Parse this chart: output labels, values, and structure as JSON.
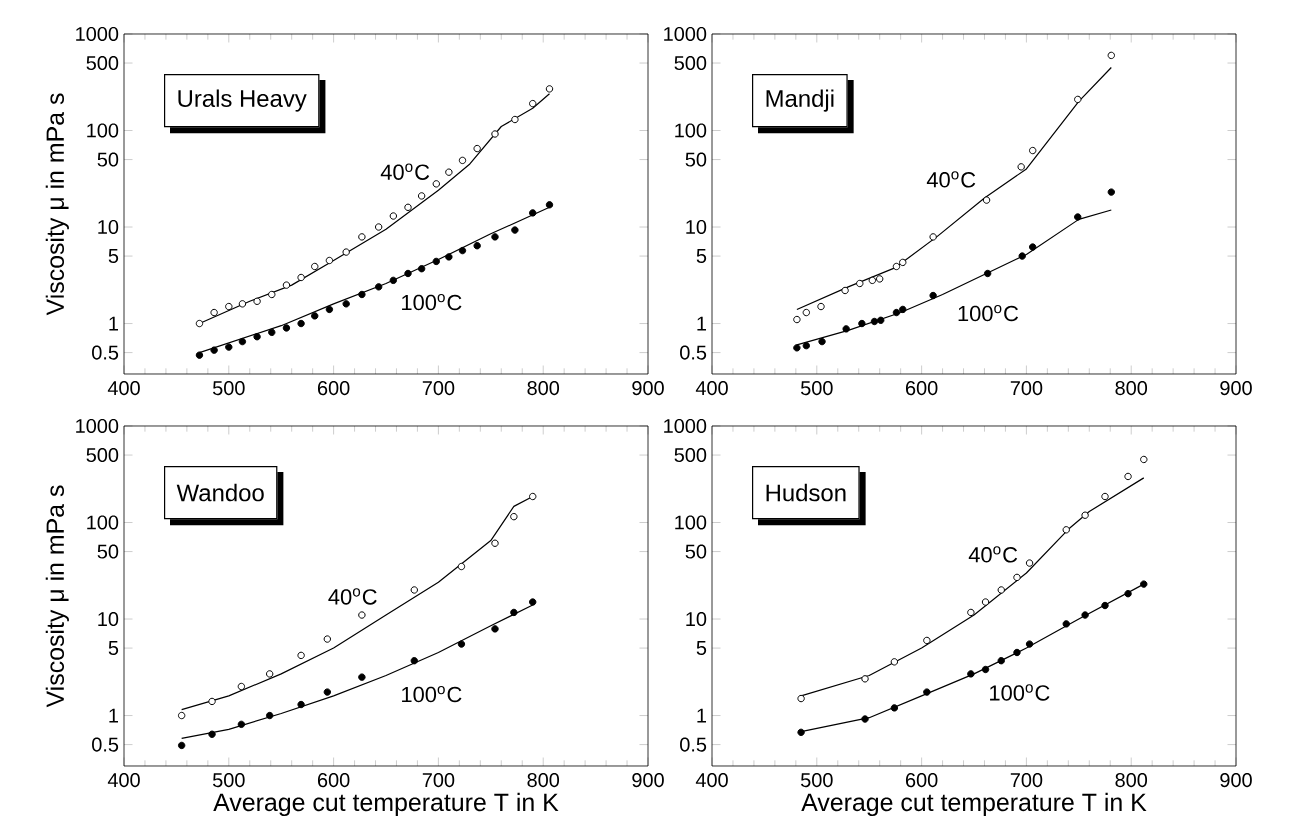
{
  "chart_data": [
    {
      "type": "scatter",
      "title": "Urals Heavy",
      "ylabel": "Viscosity μ in mPa s",
      "log": "y",
      "xlim": [
        400,
        900
      ],
      "ylim": [
        0.3,
        1000
      ],
      "xticks": [
        400,
        500,
        600,
        700,
        800,
        900
      ],
      "yticks": [
        0.5,
        1,
        5,
        10,
        50,
        100,
        500,
        1000
      ],
      "series": [
        {
          "marker": "circle",
          "color": "#000000",
          "x": [
            472,
            486,
            500,
            513,
            527,
            541,
            555,
            569,
            582,
            596,
            612,
            627,
            643,
            657,
            671,
            684,
            698,
            710,
            723,
            737,
            754,
            773,
            790,
            806
          ],
          "values": [
            1.0,
            1.3,
            1.5,
            1.6,
            1.7,
            2.0,
            2.5,
            3.0,
            3.9,
            4.5,
            5.5,
            7.9,
            10,
            13,
            16,
            21,
            28,
            37,
            49,
            65,
            92,
            130,
            190,
            270
          ]
        },
        {
          "type": "line",
          "name": "40$^{o}$C",
          "marker": "none",
          "line_style": "solid",
          "color": "#000000",
          "x": [
            472,
            520,
            560,
            600,
            650,
            700,
            730,
            760,
            790,
            806
          ],
          "values": [
            1.0,
            1.7,
            2.5,
            4.5,
            9.5,
            24,
            45,
            110,
            170,
            240
          ]
        },
        {
          "marker": "circle",
          "color": "#000000",
          "x": [
            472,
            486,
            500,
            513,
            527,
            541,
            555,
            569,
            582,
            596,
            612,
            627,
            643,
            657,
            671,
            684,
            698,
            710,
            723,
            737,
            754,
            773,
            790,
            806
          ],
          "values": [
            0.47,
            0.53,
            0.57,
            0.65,
            0.73,
            0.81,
            0.9,
            1.0,
            1.2,
            1.4,
            1.6,
            2.0,
            2.4,
            2.8,
            3.3,
            3.7,
            4.4,
            4.9,
            5.7,
            6.4,
            7.9,
            9.3,
            14,
            17
          ]
        },
        {
          "type": "line",
          "name": "100$^{o}$C",
          "marker": "none",
          "line_style": "solid",
          "color": "#000000",
          "x": [
            472,
            550,
            600,
            650,
            700,
            750,
            806
          ],
          "values": [
            0.5,
            0.95,
            1.6,
            2.6,
            4.6,
            8.5,
            16
          ]
        }
      ]
    },
    {
      "type": "scatter",
      "title": "Mandji",
      "log": "y",
      "xlim": [
        400,
        900
      ],
      "ylim": [
        0.3,
        1000
      ],
      "xticks": [
        400,
        500,
        600,
        700,
        800,
        900
      ],
      "yticks": [
        0.5,
        1,
        5,
        10,
        50,
        100,
        500,
        1000
      ],
      "series": [
        {
          "marker": "circle",
          "color": "#000000",
          "x": [
            481,
            490,
            504,
            527,
            541,
            553,
            560,
            576,
            582,
            611,
            662,
            695,
            706,
            749,
            781
          ],
          "values": [
            1.1,
            1.3,
            1.5,
            2.2,
            2.6,
            2.8,
            2.9,
            3.9,
            4.3,
            7.9,
            19,
            42,
            62,
            210,
            600
          ]
        },
        {
          "type": "line",
          "name": "40$^{o}$C",
          "marker": "none",
          "line_style": "solid",
          "color": "#000000",
          "x": [
            481,
            530,
            575,
            615,
            660,
            700,
            750,
            781
          ],
          "values": [
            1.4,
            2.4,
            3.8,
            8,
            20,
            40,
            200,
            450
          ]
        },
        {
          "marker": "circle",
          "color": "#000000",
          "x": [
            481,
            490,
            505,
            528,
            543,
            555,
            561,
            576,
            582,
            611,
            663,
            696,
            706,
            749,
            781
          ],
          "values": [
            0.56,
            0.59,
            0.65,
            0.88,
            1.0,
            1.05,
            1.08,
            1.3,
            1.4,
            1.95,
            3.3,
            5.0,
            6.2,
            12.7,
            23
          ]
        },
        {
          "type": "line",
          "name": "100$^{o}$C",
          "marker": "none",
          "line_style": "solid",
          "color": "#000000",
          "x": [
            481,
            530,
            580,
            620,
            700,
            750,
            781
          ],
          "values": [
            0.6,
            0.85,
            1.3,
            2.0,
            5.2,
            12,
            15
          ]
        }
      ]
    },
    {
      "type": "scatter",
      "title": "Wandoo",
      "ylabel": "Viscosity μ in mPa s",
      "xlabel": "Average cut temperature T in K",
      "log": "y",
      "xlim": [
        400,
        900
      ],
      "ylim": [
        0.3,
        1000
      ],
      "xticks": [
        400,
        500,
        600,
        700,
        800,
        900
      ],
      "yticks": [
        0.5,
        1,
        5,
        10,
        50,
        100,
        500,
        1000
      ],
      "series": [
        {
          "marker": "circle",
          "color": "#000000",
          "x": [
            455,
            484,
            512,
            539,
            569,
            594,
            627,
            677,
            722,
            754,
            772,
            790
          ],
          "values": [
            1.0,
            1.4,
            2.0,
            2.7,
            4.2,
            6.2,
            11,
            20,
            35,
            61,
            115,
            186
          ]
        },
        {
          "type": "line",
          "name": "40$^{o}$C",
          "marker": "none",
          "line_style": "solid",
          "color": "#000000",
          "x": [
            455,
            500,
            550,
            600,
            650,
            700,
            750,
            772,
            790
          ],
          "values": [
            1.15,
            1.6,
            2.7,
            5,
            11,
            24,
            65,
            147,
            186
          ]
        },
        {
          "marker": "circle",
          "color": "#000000",
          "x": [
            455,
            484,
            512,
            539,
            569,
            594,
            627,
            677,
            722,
            754,
            772,
            790
          ],
          "values": [
            0.49,
            0.64,
            0.81,
            1.0,
            1.3,
            1.75,
            2.5,
            3.7,
            5.5,
            7.9,
            11.7,
            15
          ]
        },
        {
          "type": "line",
          "name": "100$^{o}$C",
          "marker": "none",
          "line_style": "solid",
          "color": "#000000",
          "x": [
            455,
            500,
            550,
            600,
            650,
            700,
            750,
            790
          ],
          "values": [
            0.58,
            0.72,
            1.05,
            1.6,
            2.6,
            4.5,
            8.5,
            14
          ]
        }
      ]
    },
    {
      "type": "scatter",
      "title": "Hudson",
      "xlabel": "Average cut temperature T in K",
      "log": "y",
      "xlim": [
        400,
        900
      ],
      "ylim": [
        0.3,
        1000
      ],
      "xticks": [
        400,
        500,
        600,
        700,
        800,
        900
      ],
      "yticks": [
        0.5,
        1,
        5,
        10,
        50,
        100,
        500,
        1000
      ],
      "series": [
        {
          "marker": "circle",
          "color": "#000000",
          "x": [
            485,
            546,
            574,
            605,
            647,
            661,
            676,
            691,
            703,
            738,
            756,
            775,
            797,
            812
          ],
          "values": [
            1.5,
            2.4,
            3.6,
            6.0,
            11.7,
            15,
            20,
            27,
            38,
            84,
            119,
            186,
            300,
            450
          ]
        },
        {
          "type": "line",
          "name": "40$^{o}$C",
          "marker": "none",
          "line_style": "solid",
          "color": "#000000",
          "x": [
            485,
            550,
            600,
            650,
            700,
            740,
            760,
            812
          ],
          "values": [
            1.6,
            2.6,
            5,
            11,
            30,
            85,
            130,
            290
          ]
        },
        {
          "marker": "circle",
          "color": "#000000",
          "x": [
            485,
            546,
            574,
            605,
            647,
            661,
            676,
            691,
            703,
            738,
            756,
            775,
            797,
            812
          ],
          "values": [
            0.67,
            0.92,
            1.2,
            1.75,
            2.7,
            3.0,
            3.7,
            4.5,
            5.5,
            8.9,
            11,
            13.8,
            18.3,
            23
          ]
        },
        {
          "type": "line",
          "name": "100$^{o}$C",
          "marker": "none",
          "line_style": "solid",
          "color": "#000000",
          "x": [
            485,
            550,
            600,
            650,
            700,
            750,
            812
          ],
          "values": [
            0.68,
            0.95,
            1.6,
            2.7,
            5,
            10,
            23
          ]
        }
      ]
    }
  ]
}
